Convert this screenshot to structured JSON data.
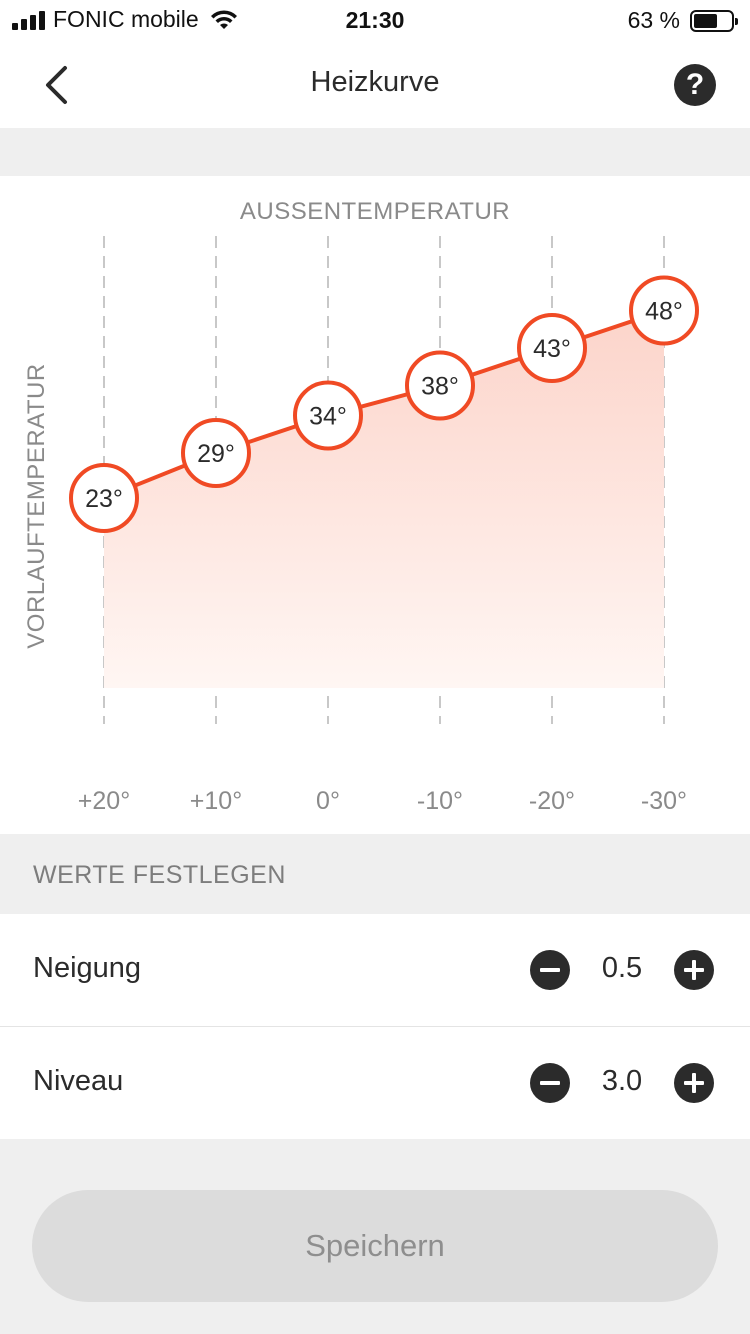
{
  "status_bar": {
    "carrier": "FONIC mobile",
    "time": "21:30",
    "battery": "63 %",
    "battery_level": 0.63
  },
  "nav": {
    "title": "Heizkurve",
    "back_icon": "chevron-left-icon",
    "help_icon": "question-circle-icon",
    "help_label": "?"
  },
  "chart_data": {
    "type": "area",
    "title": "",
    "xlabel": "AUSSENTEMPERATUR",
    "ylabel": "VORLAUFTEMPERATUR",
    "categories": [
      "+20°",
      "+10°",
      "0°",
      "-10°",
      "-20°",
      "-30°"
    ],
    "x": [
      20,
      10,
      0,
      -10,
      -20,
      -30
    ],
    "values": [
      23,
      29,
      34,
      38,
      43,
      48
    ],
    "value_labels": [
      "23°",
      "29°",
      "34°",
      "38°",
      "43°",
      "48°"
    ],
    "grid": "vertical dashed",
    "line_color": "#f04a24",
    "fill_color": "#fde3dc"
  },
  "settings": {
    "section_title": "WERTE FESTLEGEN",
    "neigung": {
      "label": "Neigung",
      "value": "0.5"
    },
    "niveau": {
      "label": "Niveau",
      "value": "3.0"
    }
  },
  "save": {
    "label": "Speichern"
  },
  "colors": {
    "accent": "#f04a24",
    "dark": "#2b2b2b",
    "muted": "#7d7d7d",
    "background": "#efefef",
    "button_disabled": "#dcdcdc"
  }
}
